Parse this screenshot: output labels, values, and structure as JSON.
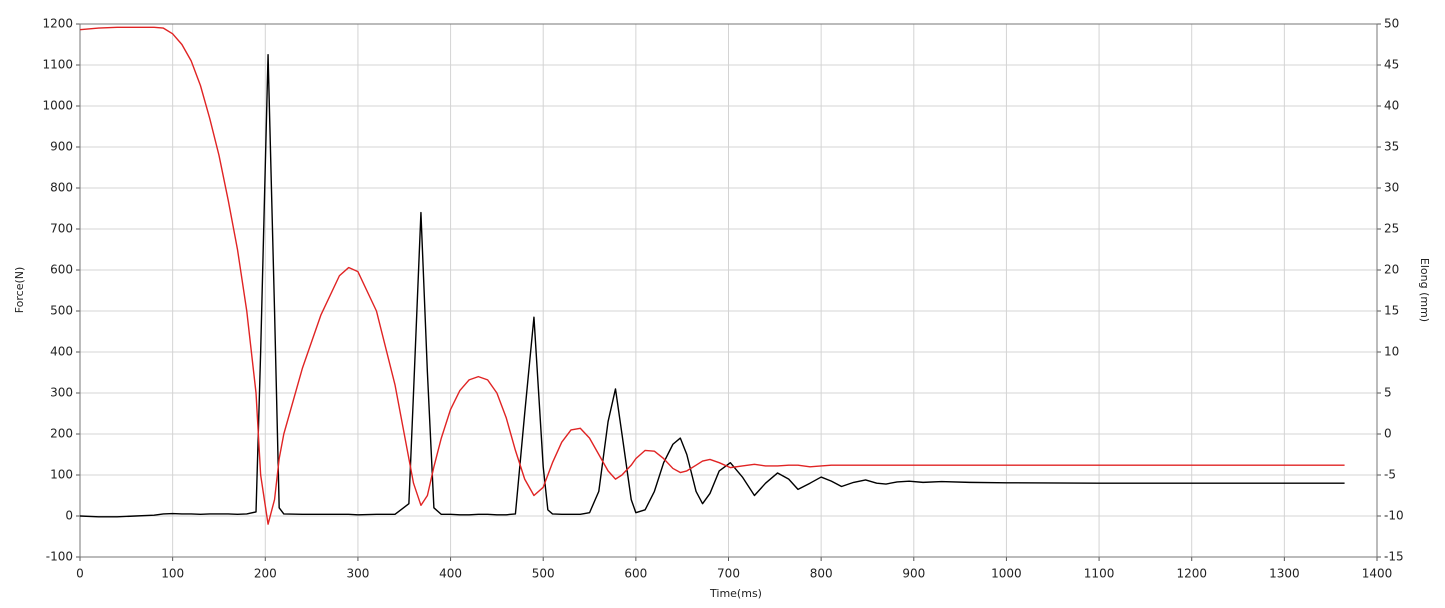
{
  "chart_data": {
    "type": "line",
    "x_label": "Time(ms)",
    "y_label": "Force(N)",
    "y2_label": "Elong (mm)",
    "grid": true,
    "xlim": [
      0,
      1400
    ],
    "xticks": [
      0,
      100,
      200,
      300,
      400,
      500,
      600,
      700,
      800,
      900,
      1000,
      1100,
      1200,
      1300,
      1400
    ],
    "ylim": [
      -100,
      1200
    ],
    "yticks": [
      -100,
      0,
      100,
      200,
      300,
      400,
      500,
      600,
      700,
      800,
      900,
      1000,
      1100,
      1200
    ],
    "y2lim": [
      -15,
      50
    ],
    "y2ticks": [
      -15,
      -10,
      -5,
      0,
      5,
      10,
      15,
      20,
      25,
      30,
      35,
      40,
      45,
      50
    ],
    "x": [
      0,
      20,
      40,
      60,
      80,
      90,
      100,
      110,
      120,
      130,
      140,
      150,
      160,
      170,
      180,
      190,
      195,
      203,
      210,
      215,
      220,
      240,
      260,
      280,
      290,
      300,
      320,
      340,
      355,
      360,
      368,
      375,
      382,
      390,
      400,
      410,
      420,
      430,
      440,
      450,
      460,
      470,
      480,
      490,
      500,
      505,
      510,
      520,
      530,
      540,
      550,
      560,
      570,
      578,
      585,
      595,
      600,
      610,
      620,
      630,
      640,
      648,
      655,
      665,
      672,
      680,
      690,
      702,
      715,
      728,
      740,
      753,
      765,
      775,
      788,
      800,
      811,
      822,
      835,
      848,
      860,
      870,
      882,
      895,
      910,
      930,
      960,
      1000,
      1100,
      1200,
      1300,
      1365
    ],
    "series": [
      {
        "color": "#000000",
        "values": [
          0,
          -2,
          -2,
          0,
          2,
          5,
          6,
          5,
          5,
          4,
          5,
          5,
          5,
          4,
          5,
          10,
          400,
          1125,
          500,
          20,
          5,
          4,
          4,
          4,
          4,
          3,
          4,
          4,
          30,
          300,
          740,
          350,
          20,
          4,
          4,
          3,
          3,
          4,
          4,
          3,
          3,
          5,
          250,
          485,
          120,
          15,
          5,
          4,
          4,
          4,
          8,
          60,
          230,
          310,
          200,
          40,
          8,
          15,
          60,
          130,
          175,
          190,
          150,
          60,
          30,
          55,
          110,
          130,
          95,
          50,
          80,
          105,
          90,
          65,
          80,
          95,
          85,
          72,
          82,
          88,
          80,
          78,
          83,
          85,
          82,
          84,
          82,
          81,
          80,
          80,
          80,
          80
        ]
      },
      {
        "color": "#e02424",
        "axis": "y2",
        "values": [
          49.3,
          49.5,
          49.6,
          49.6,
          49.6,
          49.5,
          48.8,
          47.5,
          45.5,
          42.5,
          38.5,
          34,
          28.5,
          22.5,
          15,
          5,
          -5,
          -11,
          -8,
          -3,
          0,
          8,
          14.5,
          19.3,
          20.3,
          19.8,
          15,
          6,
          -3,
          -6,
          -8.7,
          -7.5,
          -4,
          -0.5,
          3,
          5.3,
          6.6,
          7,
          6.6,
          5,
          2,
          -2,
          -5.5,
          -7.5,
          -6.5,
          -5,
          -3.5,
          -1,
          0.5,
          0.7,
          -0.5,
          -2.5,
          -4.5,
          -5.5,
          -5,
          -3.8,
          -3,
          -2,
          -2.1,
          -3,
          -4.2,
          -4.7,
          -4.5,
          -3.8,
          -3.3,
          -3.1,
          -3.5,
          -4.1,
          -3.9,
          -3.7,
          -3.9,
          -3.9,
          -3.8,
          -3.8,
          -4,
          -3.9,
          -3.8,
          -3.8,
          -3.8,
          -3.8,
          -3.8,
          -3.8,
          -3.8,
          -3.8,
          -3.8,
          -3.8,
          -3.8,
          -3.8,
          -3.8,
          -3.8,
          -3.8,
          -3.8
        ]
      }
    ]
  }
}
